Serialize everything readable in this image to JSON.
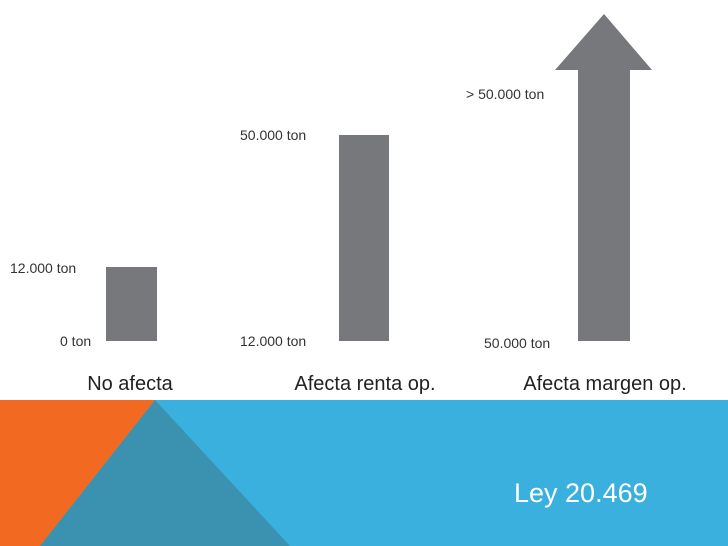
{
  "columns": [
    {
      "top_label": "12.000 ton",
      "bottom_label": "0 ton",
      "category": "No afecta"
    },
    {
      "top_label": "50.000 ton",
      "bottom_label": "12.000 ton",
      "category": "Afecta renta op."
    },
    {
      "top_label": "> 50.000 ton",
      "bottom_label": "50.000 ton",
      "category": "Afecta margen op."
    }
  ],
  "footer": {
    "law": "Ley 20.469"
  }
}
